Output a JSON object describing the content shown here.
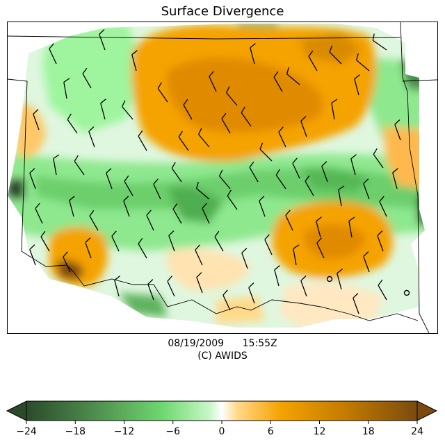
{
  "title": "Surface Divergence",
  "datetime": {
    "date": "08/19/2009",
    "time": "15:55Z"
  },
  "credit": "(C) AWIDS",
  "colorbar": {
    "min": -24,
    "max": 24,
    "ticks": [
      "−24",
      "−18",
      "−12",
      "−6",
      "0",
      "6",
      "12",
      "18",
      "24"
    ],
    "extend": "both",
    "colors": {
      "strong_negative": "#2b4a2b",
      "mid_negative": "#5fb35f",
      "weak_negative": "#9ef59e",
      "near_zero": "#ffffff",
      "weak_positive": "#ffd98a",
      "mid_positive": "#f5a300",
      "strong_positive": "#7a4a10"
    }
  },
  "map": {
    "fields": [
      "convergence",
      "divergence"
    ],
    "overlay": "wind-barbs",
    "boundaries": "state-lines"
  }
}
